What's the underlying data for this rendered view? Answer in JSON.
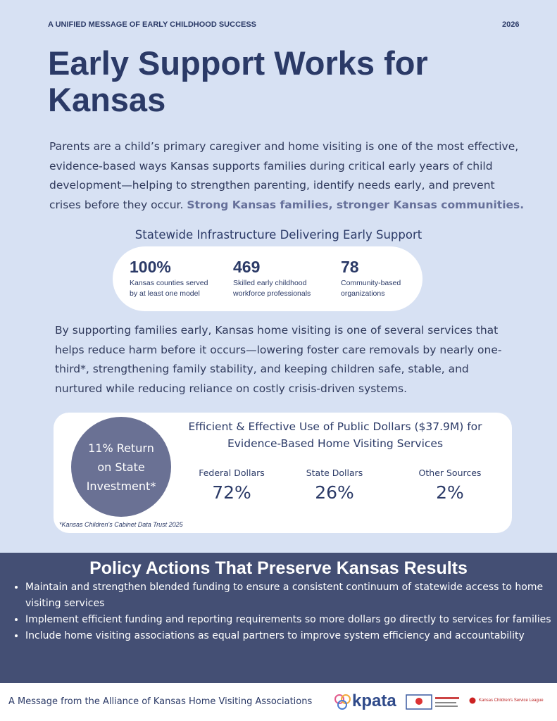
{
  "header": {
    "eyebrow": "A UNIFIED MESSAGE OF EARLY CHILDHOOD SUCCESS",
    "year": "2026",
    "title": "Early Support Works for Kansas"
  },
  "intro": {
    "text": "Parents are a child’s primary caregiver and home visiting is one of the most effective, evidence-based ways Kansas supports families during critical early years of child development—helping to strengthen parenting, identify needs early, and prevent crises before they occur.",
    "emphasis": "Strong Kansas families, stronger Kansas communities."
  },
  "infrastructure": {
    "title": "Statewide Infrastructure Delivering Early Support",
    "stats": [
      {
        "value": "100%",
        "label": "Kansas counties served by at least one model"
      },
      {
        "value": "469",
        "label": "Skilled early childhood workforce professionals"
      },
      {
        "value": "78",
        "label": "Community-based organizations"
      }
    ]
  },
  "impact": {
    "text": "By supporting families early, Kansas home visiting is one of several services that helps reduce harm before it occurs—lowering foster care removals by nearly one-third*, strengthening family stability, and keeping children safe, stable, and nurtured while reducing reliance on costly crisis-driven systems."
  },
  "funding": {
    "roi": "11% Return on State Investment*",
    "title": "Efficient & Effective Use of Public Dollars ($37.9M) for Evidence-Based Home Visiting Services",
    "sources": [
      {
        "name": "Federal Dollars",
        "share": "72%"
      },
      {
        "name": "State Dollars",
        "share": "26%"
      },
      {
        "name": "Other Sources",
        "share": "2%"
      }
    ],
    "footnote": "*Kansas Children's Cabinet Data Trust 2025"
  },
  "policy": {
    "title": "Policy Actions That Preserve Kansas Results",
    "items": [
      "Maintain and strengthen blended funding to ensure a consistent continuum of statewide access to home visiting services",
      "Implement efficient funding and reporting requirements so more dollars go directly to services for families",
      "Include home visiting associations as equal partners to improve system efficiency and accountability"
    ]
  },
  "footer": {
    "message": "A Message from the Alliance of Kansas Home Visiting Associations",
    "logos": [
      "kpata",
      "Kansas Children's Service League"
    ]
  }
}
